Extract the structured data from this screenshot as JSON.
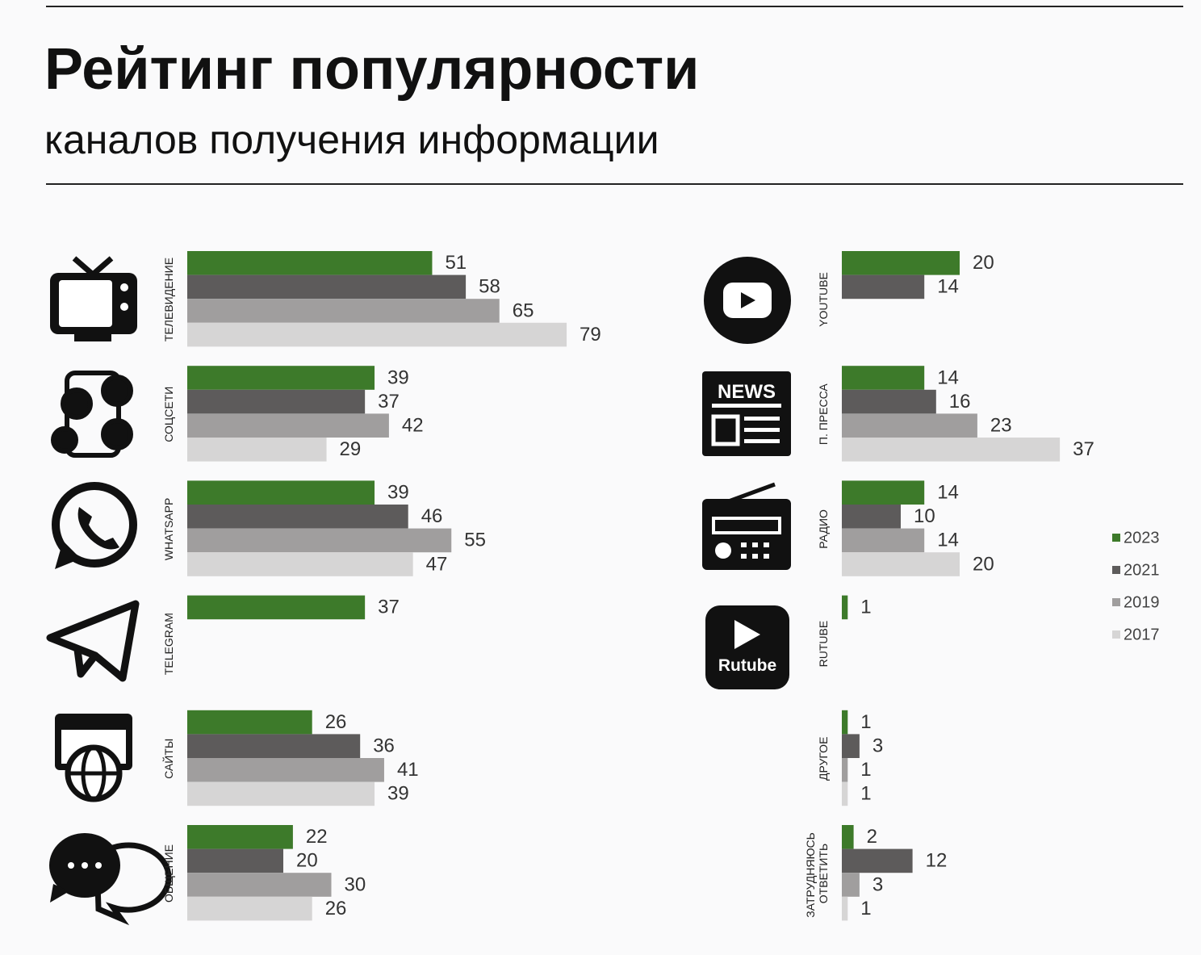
{
  "chart_data": {
    "type": "bar",
    "orientation": "horizontal",
    "title": "Рейтинг популярности",
    "subtitle": "каналов получения информации",
    "categories": [
      "ТЕЛЕВИДЕНИЕ",
      "СОЦСЕТИ",
      "WHATSAPP",
      "TELEGRAM",
      "САЙТЫ",
      "ОБЩЕНИЕ",
      "YOUTUBE",
      "П. ПРЕССА",
      "РАДИО",
      "RUTUBE",
      "ДРУГОЕ",
      "ЗАТРУДНЯЮСЬ ОТВЕТИТЬ"
    ],
    "series": [
      {
        "name": "2023",
        "color": "#3d7a2a",
        "values": [
          51,
          39,
          39,
          37,
          26,
          22,
          20,
          14,
          14,
          1,
          1,
          2
        ]
      },
      {
        "name": "2021",
        "color": "#5d5b5b",
        "values": [
          58,
          37,
          46,
          null,
          36,
          20,
          14,
          16,
          10,
          null,
          3,
          12
        ]
      },
      {
        "name": "2019",
        "color": "#a09e9e",
        "values": [
          65,
          42,
          55,
          null,
          41,
          30,
          null,
          23,
          14,
          null,
          1,
          3
        ]
      },
      {
        "name": "2017",
        "color": "#d6d5d5",
        "values": [
          79,
          29,
          47,
          null,
          39,
          26,
          null,
          37,
          20,
          null,
          1,
          1
        ]
      }
    ],
    "icon_texts": {
      "news": "NEWS",
      "rutube": "Rutube"
    },
    "legend": "right"
  }
}
